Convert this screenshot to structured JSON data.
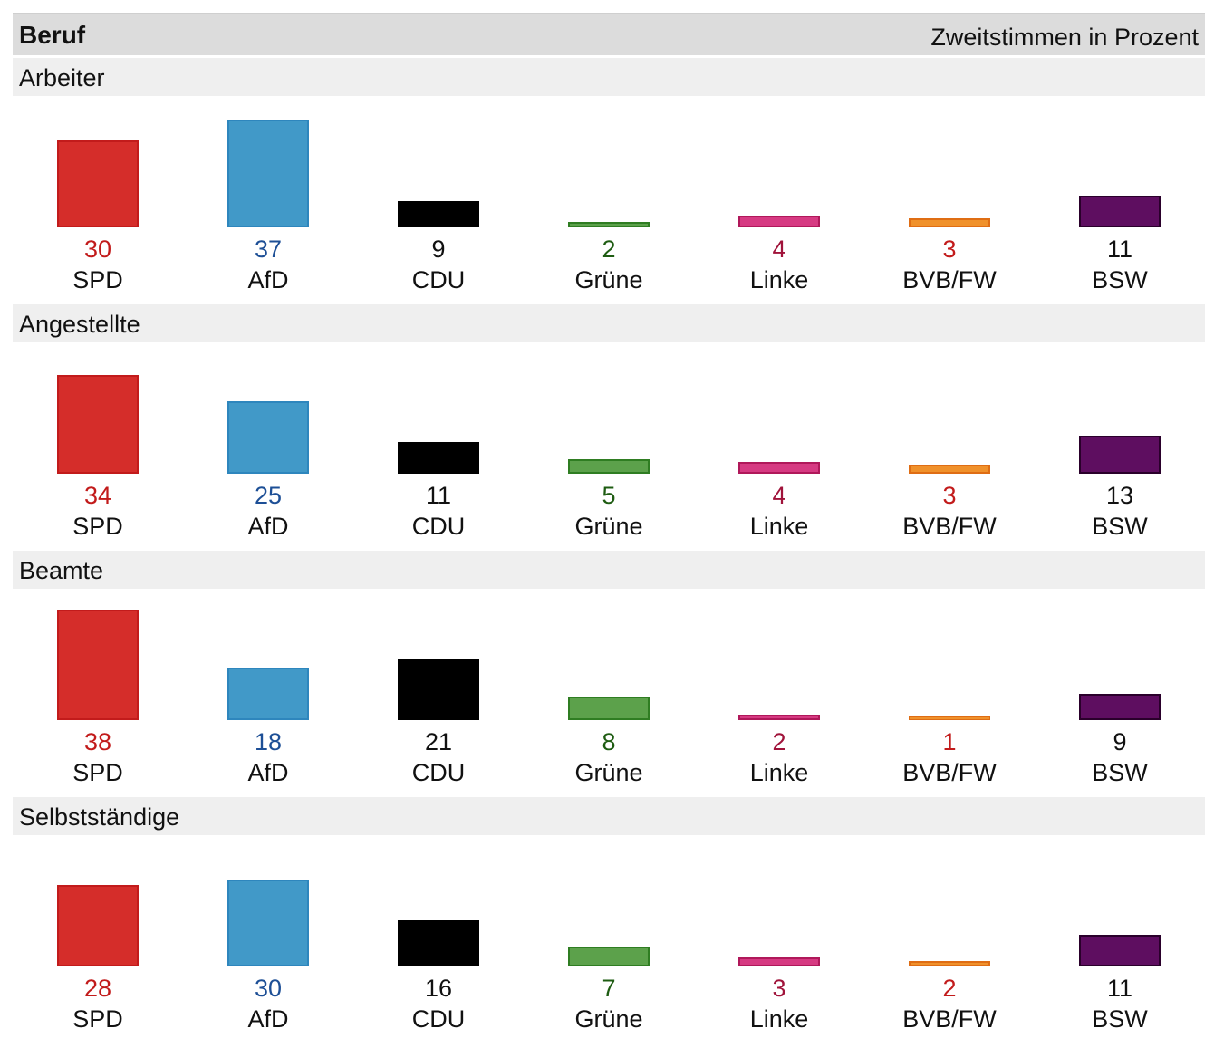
{
  "header": {
    "title": "Beruf",
    "unit": "Zweitstimmen in Prozent"
  },
  "chart_data": {
    "type": "bar",
    "categories": [
      "SPD",
      "AfD",
      "CDU",
      "Grüne",
      "Linke",
      "BVB/FW",
      "BSW"
    ],
    "colors": {
      "SPD": {
        "fill": "#d52d2a",
        "stroke": "#c21b1b",
        "text": "#c21b1b"
      },
      "AfD": {
        "fill": "#4199c8",
        "stroke": "#2e86bd",
        "text": "#1d4f96"
      },
      "CDU": {
        "fill": "#000000",
        "stroke": "#000000",
        "text": "#111111"
      },
      "Grüne": {
        "fill": "#5ca14b",
        "stroke": "#2f7d22",
        "text": "#1e5c12"
      },
      "Linke": {
        "fill": "#d63a82",
        "stroke": "#b0185a",
        "text": "#a0133a"
      },
      "BVB/FW": {
        "fill": "#f0912b",
        "stroke": "#df6d14",
        "text": "#c21b1b"
      },
      "BSW": {
        "fill": "#5e0e60",
        "stroke": "#2a002b",
        "text": "#111111"
      }
    },
    "groups": [
      {
        "name": "Arbeiter",
        "values": [
          30,
          37,
          9,
          2,
          4,
          3,
          11
        ]
      },
      {
        "name": "Angestellte",
        "values": [
          34,
          25,
          11,
          5,
          4,
          3,
          13
        ]
      },
      {
        "name": "Beamte",
        "values": [
          38,
          18,
          21,
          8,
          2,
          1,
          9
        ]
      },
      {
        "name": "Selbstständige",
        "values": [
          28,
          30,
          16,
          7,
          3,
          2,
          11
        ]
      }
    ],
    "ylim": [
      0,
      38
    ]
  }
}
